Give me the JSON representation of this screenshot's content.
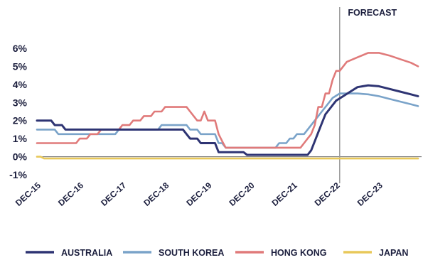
{
  "chart_data": {
    "type": "line",
    "title": "",
    "xlabel": "",
    "ylabel": "",
    "ylim": [
      -1,
      6.6
    ],
    "xlim": [
      "2015-12",
      "2024-12"
    ],
    "y_ticks": [
      {
        "value": 6,
        "label": "6%"
      },
      {
        "value": 5,
        "label": "5%"
      },
      {
        "value": 4,
        "label": "4%"
      },
      {
        "value": 3,
        "label": "3%"
      },
      {
        "value": 2,
        "label": "2%"
      },
      {
        "value": 1,
        "label": "1%"
      },
      {
        "value": 0,
        "label": "0%"
      },
      {
        "value": -1,
        "label": "-1%"
      }
    ],
    "x_ticks": [
      {
        "date": "2015-12",
        "label": "DEC-15"
      },
      {
        "date": "2016-12",
        "label": "DEC-16"
      },
      {
        "date": "2017-12",
        "label": "DEC-17"
      },
      {
        "date": "2018-12",
        "label": "DEC-18"
      },
      {
        "date": "2019-12",
        "label": "DEC-19"
      },
      {
        "date": "2020-12",
        "label": "DEC-20"
      },
      {
        "date": "2021-12",
        "label": "DEC-21"
      },
      {
        "date": "2022-12",
        "label": "DEC-22"
      },
      {
        "date": "2023-12",
        "label": "DEC-23"
      }
    ],
    "forecast": {
      "start": "2023-01",
      "label": "FORECAST"
    },
    "grid": false,
    "legend_position": "bottom",
    "series": [
      {
        "name": "AUSTRALIA",
        "color": "#2e3473",
        "points": [
          [
            "2015-12",
            2.0
          ],
          [
            "2016-04",
            2.0
          ],
          [
            "2016-05",
            1.75
          ],
          [
            "2016-07",
            1.75
          ],
          [
            "2016-08",
            1.5
          ],
          [
            "2018-12",
            1.5
          ],
          [
            "2019-05",
            1.5
          ],
          [
            "2019-06",
            1.25
          ],
          [
            "2019-07",
            1.0
          ],
          [
            "2019-09",
            1.0
          ],
          [
            "2019-10",
            0.75
          ],
          [
            "2020-02",
            0.75
          ],
          [
            "2020-03",
            0.25
          ],
          [
            "2020-10",
            0.25
          ],
          [
            "2020-11",
            0.1
          ],
          [
            "2022-04",
            0.1
          ],
          [
            "2022-05",
            0.35
          ],
          [
            "2022-06",
            0.85
          ],
          [
            "2022-07",
            1.35
          ],
          [
            "2022-08",
            1.85
          ],
          [
            "2022-09",
            2.35
          ],
          [
            "2022-10",
            2.6
          ],
          [
            "2022-11",
            2.85
          ],
          [
            "2022-12",
            3.1
          ],
          [
            "2023-02",
            3.35
          ],
          [
            "2023-04",
            3.6
          ],
          [
            "2023-06",
            3.85
          ],
          [
            "2023-09",
            3.95
          ],
          [
            "2023-12",
            3.9
          ],
          [
            "2024-03",
            3.75
          ],
          [
            "2024-06",
            3.6
          ],
          [
            "2024-09",
            3.45
          ],
          [
            "2024-11",
            3.35
          ]
        ]
      },
      {
        "name": "SOUTH KOREA",
        "color": "#7aa3c9",
        "points": [
          [
            "2015-12",
            1.5
          ],
          [
            "2016-05",
            1.5
          ],
          [
            "2016-06",
            1.25
          ],
          [
            "2017-10",
            1.25
          ],
          [
            "2017-11",
            1.5
          ],
          [
            "2018-10",
            1.5
          ],
          [
            "2018-11",
            1.75
          ],
          [
            "2019-06",
            1.75
          ],
          [
            "2019-07",
            1.5
          ],
          [
            "2019-09",
            1.5
          ],
          [
            "2019-10",
            1.25
          ],
          [
            "2020-02",
            1.25
          ],
          [
            "2020-03",
            0.75
          ],
          [
            "2020-04",
            0.75
          ],
          [
            "2020-05",
            0.5
          ],
          [
            "2021-07",
            0.5
          ],
          [
            "2021-08",
            0.75
          ],
          [
            "2021-10",
            0.75
          ],
          [
            "2021-11",
            1.0
          ],
          [
            "2021-12",
            1.0
          ],
          [
            "2022-01",
            1.25
          ],
          [
            "2022-03",
            1.25
          ],
          [
            "2022-04",
            1.5
          ],
          [
            "2022-05",
            1.75
          ],
          [
            "2022-07",
            2.25
          ],
          [
            "2022-08",
            2.5
          ],
          [
            "2022-10",
            3.0
          ],
          [
            "2022-11",
            3.25
          ],
          [
            "2023-01",
            3.5
          ],
          [
            "2023-06",
            3.5
          ],
          [
            "2023-09",
            3.45
          ],
          [
            "2023-12",
            3.35
          ],
          [
            "2024-03",
            3.2
          ],
          [
            "2024-06",
            3.05
          ],
          [
            "2024-09",
            2.9
          ],
          [
            "2024-11",
            2.8
          ]
        ]
      },
      {
        "name": "HONG KONG",
        "color": "#e07a7a",
        "points": [
          [
            "2015-12",
            0.75
          ],
          [
            "2016-11",
            0.75
          ],
          [
            "2016-12",
            1.0
          ],
          [
            "2017-02",
            1.0
          ],
          [
            "2017-03",
            1.25
          ],
          [
            "2017-05",
            1.25
          ],
          [
            "2017-06",
            1.5
          ],
          [
            "2017-11",
            1.5
          ],
          [
            "2017-12",
            1.75
          ],
          [
            "2018-02",
            1.75
          ],
          [
            "2018-03",
            2.0
          ],
          [
            "2018-05",
            2.0
          ],
          [
            "2018-06",
            2.25
          ],
          [
            "2018-08",
            2.25
          ],
          [
            "2018-09",
            2.5
          ],
          [
            "2018-11",
            2.5
          ],
          [
            "2018-12",
            2.75
          ],
          [
            "2019-06",
            2.75
          ],
          [
            "2019-07",
            2.5
          ],
          [
            "2019-09",
            2.0
          ],
          [
            "2019-10",
            2.0
          ],
          [
            "2019-11",
            2.5
          ],
          [
            "2019-12",
            2.0
          ],
          [
            "2020-02",
            2.0
          ],
          [
            "2020-03",
            1.25
          ],
          [
            "2020-04",
            0.86
          ],
          [
            "2020-05",
            0.5
          ],
          [
            "2022-02",
            0.5
          ],
          [
            "2022-03",
            0.75
          ],
          [
            "2022-04",
            1.0
          ],
          [
            "2022-05",
            1.25
          ],
          [
            "2022-06",
            1.75
          ],
          [
            "2022-07",
            2.75
          ],
          [
            "2022-08",
            2.75
          ],
          [
            "2022-09",
            3.5
          ],
          [
            "2022-10",
            3.5
          ],
          [
            "2022-11",
            4.25
          ],
          [
            "2022-12",
            4.75
          ],
          [
            "2023-01",
            4.75
          ],
          [
            "2023-02",
            5.0
          ],
          [
            "2023-03",
            5.25
          ],
          [
            "2023-06",
            5.5
          ],
          [
            "2023-09",
            5.75
          ],
          [
            "2023-12",
            5.75
          ],
          [
            "2024-03",
            5.6
          ],
          [
            "2024-06",
            5.4
          ],
          [
            "2024-09",
            5.2
          ],
          [
            "2024-11",
            5.0
          ]
        ]
      },
      {
        "name": "JAPAN",
        "color": "#e8c85a",
        "points": [
          [
            "2015-12",
            0.0
          ],
          [
            "2016-01",
            0.0
          ],
          [
            "2016-02",
            -0.1
          ],
          [
            "2024-11",
            -0.1
          ]
        ]
      }
    ]
  }
}
